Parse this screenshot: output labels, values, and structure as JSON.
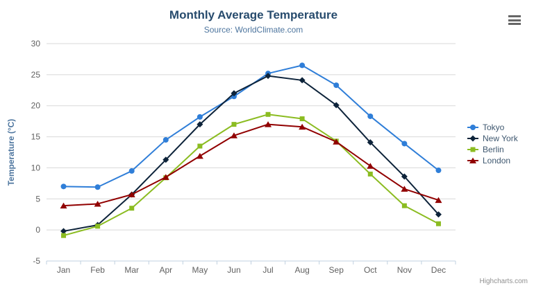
{
  "header": {
    "title": "Monthly Average Temperature",
    "subtitle": "Source: WorldClimate.com"
  },
  "credits": "Highcharts.com",
  "colors": {
    "title": "#274b6d",
    "subtitle": "#4d759e",
    "axis_title": "#4d759e",
    "tick_label": "#606060",
    "gridline": "#d8d8d8",
    "axis_line": "#c0d0e0",
    "legend_text": "#3e576f"
  },
  "chart_data": {
    "type": "line",
    "title": "Monthly Average Temperature",
    "subtitle": "Source: WorldClimate.com",
    "categories": [
      "Jan",
      "Feb",
      "Mar",
      "Apr",
      "May",
      "Jun",
      "Jul",
      "Aug",
      "Sep",
      "Oct",
      "Nov",
      "Dec"
    ],
    "series": [
      {
        "name": "Tokyo",
        "color": "#2f7ed8",
        "marker": "circle",
        "values": [
          7.0,
          6.9,
          9.5,
          14.5,
          18.2,
          21.5,
          25.2,
          26.5,
          23.3,
          18.3,
          13.9,
          9.6
        ]
      },
      {
        "name": "New York",
        "color": "#0d233a",
        "marker": "diamond",
        "values": [
          -0.2,
          0.8,
          5.7,
          11.3,
          17.0,
          22.0,
          24.8,
          24.1,
          20.1,
          14.1,
          8.6,
          2.5
        ]
      },
      {
        "name": "Berlin",
        "color": "#8bbc21",
        "marker": "square",
        "values": [
          -0.9,
          0.6,
          3.5,
          8.4,
          13.5,
          17.0,
          18.6,
          17.9,
          14.3,
          9.0,
          3.9,
          1.0
        ]
      },
      {
        "name": "London",
        "color": "#910000",
        "marker": "triangle",
        "values": [
          3.9,
          4.2,
          5.7,
          8.5,
          11.9,
          15.2,
          17.0,
          16.6,
          14.2,
          10.3,
          6.6,
          4.8
        ]
      }
    ],
    "xlabel": "",
    "ylabel": "Temperature (°C)",
    "ylim": [
      -5,
      30
    ],
    "ytick_step": 5,
    "yticks": [
      -5,
      0,
      5,
      10,
      15,
      20,
      25,
      30
    ],
    "grid": true,
    "legend_position": "right"
  }
}
